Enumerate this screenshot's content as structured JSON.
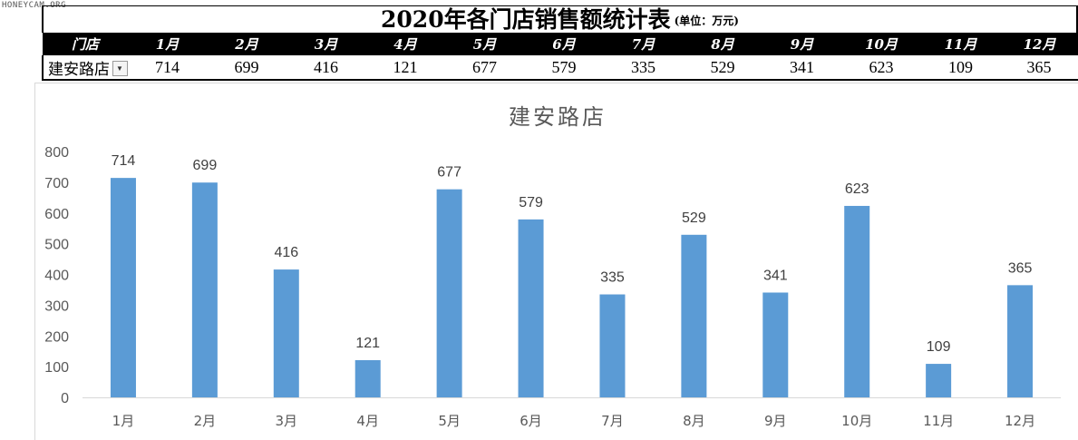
{
  "watermark": "HONEYCAM.ORG",
  "header": {
    "title": "2020年各门店销售额统计表",
    "unit": "(单位：万元)"
  },
  "table": {
    "store_header": "门店",
    "months": [
      "1月",
      "2月",
      "3月",
      "4月",
      "5月",
      "6月",
      "7月",
      "8月",
      "9月",
      "10月",
      "11月",
      "12月"
    ],
    "selected_store": "建安路店",
    "values": [
      714,
      699,
      416,
      121,
      677,
      579,
      335,
      529,
      341,
      623,
      109,
      365
    ]
  },
  "colors": {
    "bar": "#5b9bd5",
    "header_bg": "#000000",
    "axis": "#d9d9d9"
  },
  "chart_data": {
    "type": "bar",
    "title": "建安路店",
    "categories": [
      "1月",
      "2月",
      "3月",
      "4月",
      "5月",
      "6月",
      "7月",
      "8月",
      "9月",
      "10月",
      "11月",
      "12月"
    ],
    "values": [
      714,
      699,
      416,
      121,
      677,
      579,
      335,
      529,
      341,
      623,
      109,
      365
    ],
    "xlabel": "",
    "ylabel": "",
    "ylim": [
      0,
      800
    ],
    "yticks": [
      0,
      100,
      200,
      300,
      400,
      500,
      600,
      700,
      800
    ],
    "grid": false,
    "legend": "none",
    "data_labels": true
  }
}
